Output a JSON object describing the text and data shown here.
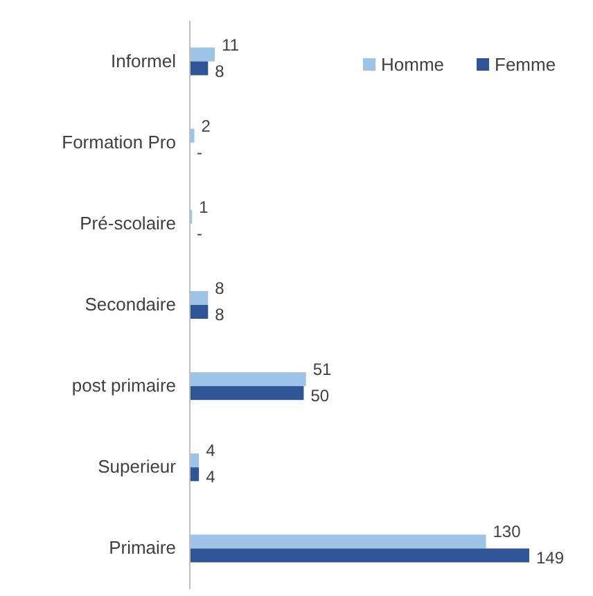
{
  "chart_data": {
    "type": "bar",
    "orientation": "horizontal",
    "categories": [
      "Informel",
      "Formation Pro",
      "Pré-scolaire",
      "Secondaire",
      "post primaire",
      "Superieur",
      "Primaire"
    ],
    "series": [
      {
        "name": "Homme",
        "color": "#9dc3e6",
        "values": [
          11,
          2,
          1,
          8,
          51,
          4,
          130
        ],
        "value_labels": [
          "11",
          "2",
          "1",
          "8",
          "51",
          "4",
          "130"
        ]
      },
      {
        "name": "Femme",
        "color": "#2f5597",
        "values": [
          8,
          0,
          0,
          8,
          50,
          4,
          149
        ],
        "value_labels": [
          "8",
          "-",
          "-",
          "8",
          "50",
          "4",
          "149"
        ]
      }
    ],
    "legend": "top right"
  }
}
